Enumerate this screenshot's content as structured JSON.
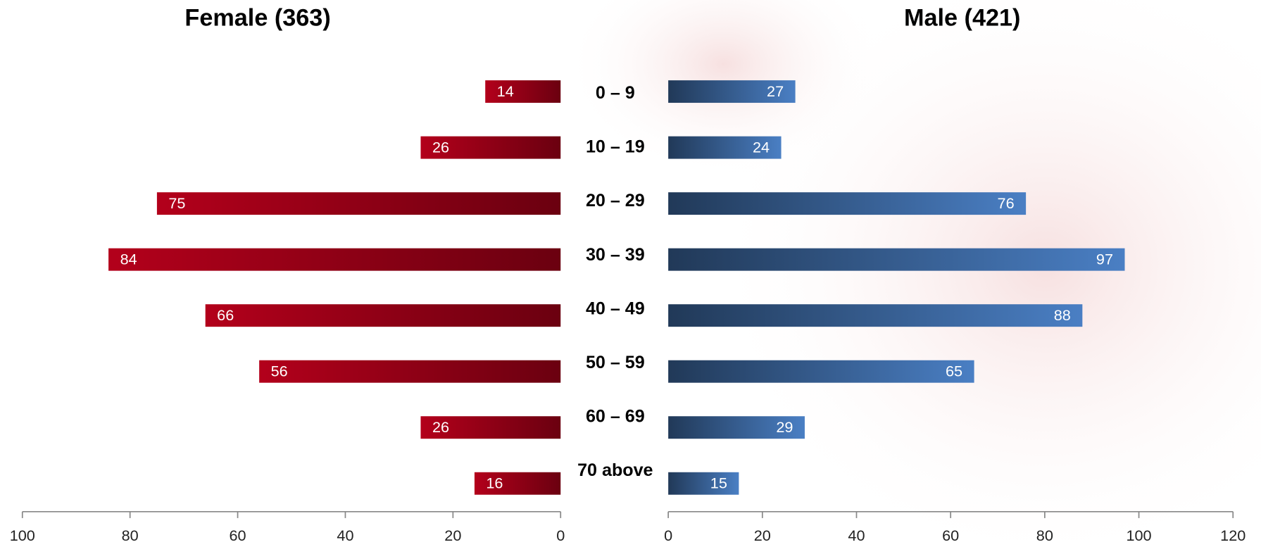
{
  "chart_data": [
    {
      "type": "bar",
      "title": "Female (363)",
      "categories": [
        "0 – 9",
        "10 – 19",
        "20 – 29",
        "30 – 39",
        "40 – 49",
        "50 – 59",
        "60 – 69",
        "70 above"
      ],
      "values": [
        14,
        26,
        75,
        84,
        66,
        56,
        26,
        16
      ],
      "color": "#b3001b",
      "xlim": [
        100,
        0
      ],
      "xticks": [
        100,
        80,
        60,
        40,
        20,
        0
      ]
    },
    {
      "type": "bar",
      "title": "Male (421)",
      "values": [
        27,
        24,
        76,
        97,
        88,
        65,
        29,
        15
      ],
      "color": "#4a7fc4",
      "xlim": [
        0,
        120
      ],
      "xticks": [
        0,
        20,
        40,
        60,
        80,
        100,
        120
      ]
    }
  ]
}
